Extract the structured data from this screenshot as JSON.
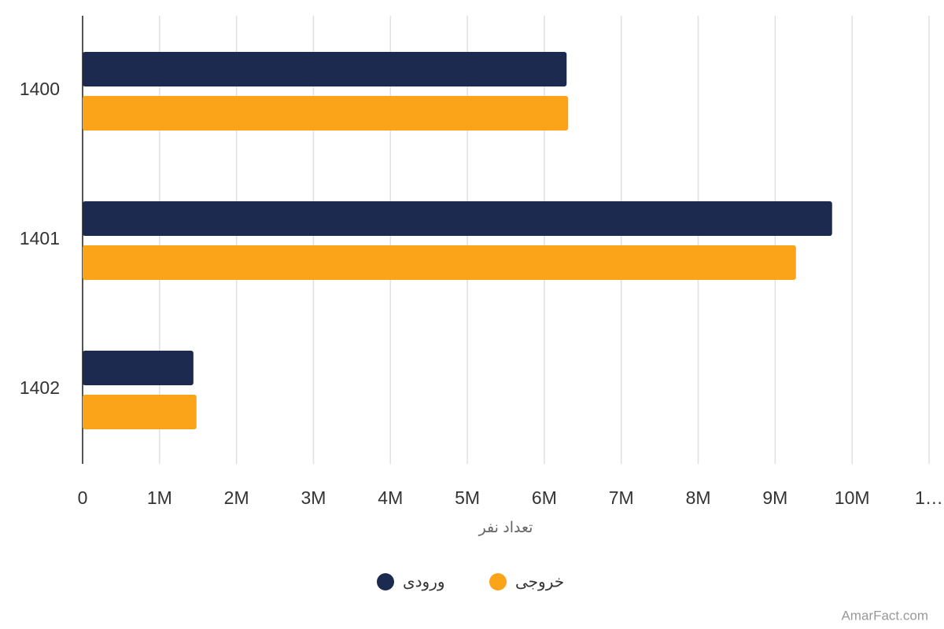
{
  "chart_data": {
    "type": "hbar",
    "categories": [
      "1400",
      "1401",
      "1402"
    ],
    "series": [
      {
        "name": "ورودی",
        "color": "#1b2a4e",
        "values": [
          6290000,
          9740000,
          1440000
        ]
      },
      {
        "name": "خروجی",
        "color": "#fba41a",
        "values": [
          6310000,
          9270000,
          1480000
        ]
      }
    ],
    "x_label": "تعداد نفر",
    "xlim": [
      0,
      11000000
    ],
    "xticks": [
      0,
      {
        "value": 1000000,
        "label": "1M"
      },
      {
        "value": 2000000,
        "label": "2M"
      },
      {
        "value": 3000000,
        "label": "3M"
      },
      {
        "value": 4000000,
        "label": "4M"
      },
      {
        "value": 5000000,
        "label": "5M"
      },
      {
        "value": 6000000,
        "label": "6M"
      },
      {
        "value": 7000000,
        "label": "7M"
      },
      {
        "value": 8000000,
        "label": "8M"
      },
      {
        "value": 9000000,
        "label": "9M"
      },
      {
        "value": 10000000,
        "label": "10M"
      },
      {
        "value": 11000000,
        "label": "1…"
      }
    ],
    "grid": true,
    "legend": "bottom",
    "watermark": "AmarFact.com"
  }
}
